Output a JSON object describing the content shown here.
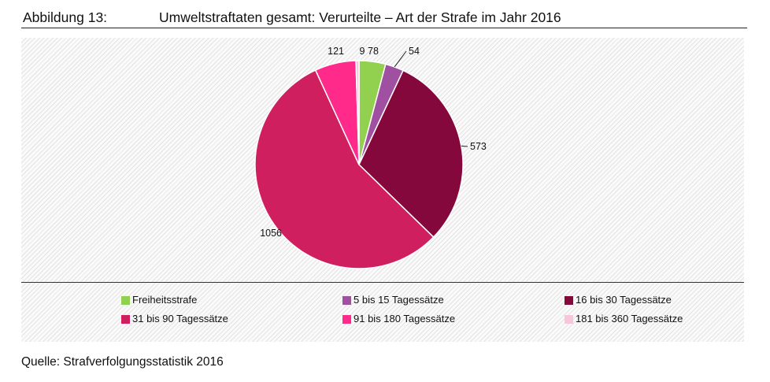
{
  "header": {
    "figure_label": "Abbildung 13:",
    "title": "Umweltstraftaten gesamt: Verurteilte – Art der Strafe im Jahr 2016"
  },
  "source": "Quelle: Strafverfolgungsstatistik 2016",
  "chart_data": {
    "type": "pie",
    "title": "Umweltstraftaten gesamt: Verurteilte – Art der Strafe im Jahr 2016",
    "categories": [
      "Freiheitsstrafe",
      "5 bis 15 Tagessätze",
      "16 bis 30 Tagessätze",
      "31 bis 90 Tagessätze",
      "91 bis 180 Tagessätze",
      "181 bis 360 Tagessätze"
    ],
    "values": [
      78,
      54,
      573,
      1056,
      121,
      9
    ],
    "colors": [
      "#92d050",
      "#a050a0",
      "#85083c",
      "#d01f5e",
      "#ff2a8a",
      "#f7c6db"
    ],
    "legend_position": "bottom",
    "start_angle_deg": 0,
    "direction": "clockwise"
  }
}
